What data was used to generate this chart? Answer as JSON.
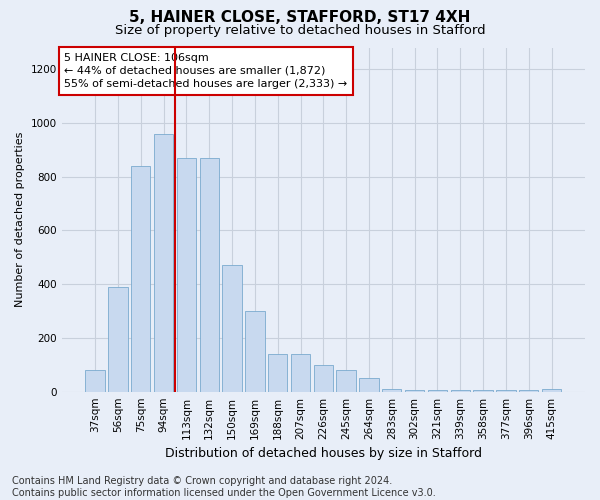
{
  "title": "5, HAINER CLOSE, STAFFORD, ST17 4XH",
  "subtitle": "Size of property relative to detached houses in Stafford",
  "xlabel": "Distribution of detached houses by size in Stafford",
  "ylabel": "Number of detached properties",
  "categories": [
    "37sqm",
    "56sqm",
    "75sqm",
    "94sqm",
    "113sqm",
    "132sqm",
    "150sqm",
    "169sqm",
    "188sqm",
    "207sqm",
    "226sqm",
    "245sqm",
    "264sqm",
    "283sqm",
    "302sqm",
    "321sqm",
    "339sqm",
    "358sqm",
    "377sqm",
    "396sqm",
    "415sqm"
  ],
  "values": [
    80,
    390,
    840,
    960,
    870,
    870,
    470,
    300,
    140,
    140,
    100,
    80,
    50,
    10,
    5,
    5,
    5,
    5,
    5,
    5,
    10
  ],
  "bar_color": "#c8d9ef",
  "bar_edge_color": "#7aaacf",
  "vline_color": "#cc0000",
  "vline_pos": 3.5,
  "annotation_text": "5 HAINER CLOSE: 106sqm\n← 44% of detached houses are smaller (1,872)\n55% of semi-detached houses are larger (2,333) →",
  "annotation_box_facecolor": "#ffffff",
  "annotation_box_edgecolor": "#cc0000",
  "ylim": [
    0,
    1280
  ],
  "yticks": [
    0,
    200,
    400,
    600,
    800,
    1000,
    1200
  ],
  "footer": "Contains HM Land Registry data © Crown copyright and database right 2024.\nContains public sector information licensed under the Open Government Licence v3.0.",
  "bg_color": "#e8eef8",
  "grid_color": "#c8d0dc",
  "title_fontsize": 11,
  "subtitle_fontsize": 9.5,
  "axis_label_fontsize": 8,
  "tick_fontsize": 7.5,
  "footer_fontsize": 7,
  "annotation_fontsize": 8
}
